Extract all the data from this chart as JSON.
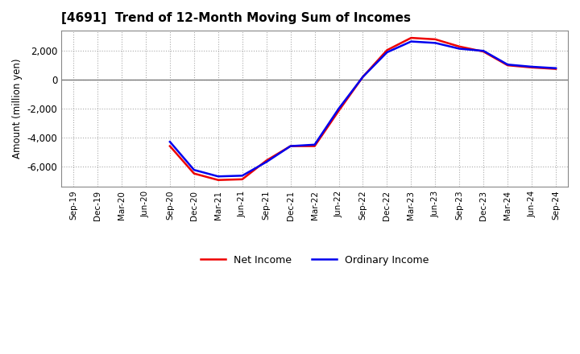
{
  "title": "[4691]  Trend of 12-Month Moving Sum of Incomes",
  "ylabel": "Amount (million yen)",
  "x_labels": [
    "Sep-19",
    "Dec-19",
    "Mar-20",
    "Jun-20",
    "Sep-20",
    "Dec-20",
    "Mar-21",
    "Jun-21",
    "Sep-21",
    "Dec-21",
    "Mar-22",
    "Jun-22",
    "Sep-22",
    "Dec-22",
    "Mar-23",
    "Jun-23",
    "Sep-23",
    "Dec-23",
    "Mar-24",
    "Jun-24",
    "Sep-24"
  ],
  "ordinary_income": [
    null,
    null,
    null,
    null,
    -4300,
    -6250,
    -6700,
    -6650,
    -5700,
    -4600,
    -4500,
    -2000,
    200,
    1900,
    2650,
    2550,
    2150,
    2000,
    1050,
    900,
    800
  ],
  "net_income": [
    null,
    null,
    null,
    null,
    -4600,
    -6500,
    -6950,
    -6900,
    -5600,
    -4600,
    -4600,
    -2150,
    200,
    2050,
    2900,
    2800,
    2300,
    1950,
    1000,
    850,
    750
  ],
  "ordinary_color": "#0000ee",
  "net_color": "#ee0000",
  "ylim": [
    -7400,
    3400
  ],
  "yticks": [
    -6000,
    -4000,
    -2000,
    0,
    2000
  ],
  "background_color": "#ffffff",
  "grid_color": "#aaaaaa",
  "line_width": 1.8
}
